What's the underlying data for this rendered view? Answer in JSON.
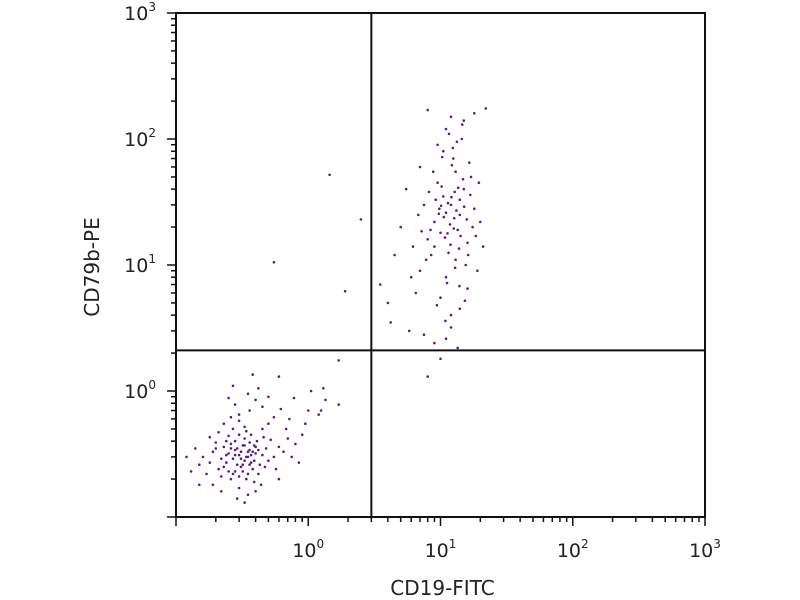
{
  "chart_data": {
    "type": "scatter",
    "xlabel": "CD19-FITC",
    "ylabel": "CD79b-PE",
    "xscale": "log",
    "yscale": "log",
    "xlim": [
      0.1,
      1000
    ],
    "ylim": [
      0.1,
      1000
    ],
    "x_ticks": [
      {
        "value": 1,
        "base": "10",
        "exp": "0"
      },
      {
        "value": 10,
        "base": "10",
        "exp": "1"
      },
      {
        "value": 100,
        "base": "10",
        "exp": "2"
      },
      {
        "value": 1000,
        "base": "10",
        "exp": "3"
      }
    ],
    "y_ticks": [
      {
        "value": 1,
        "base": "10",
        "exp": "0"
      },
      {
        "value": 10,
        "base": "10",
        "exp": "1"
      },
      {
        "value": 100,
        "base": "10",
        "exp": "2"
      },
      {
        "value": 1000,
        "base": "10",
        "exp": "3"
      }
    ],
    "quadrant_gates": {
      "x": 3.0,
      "y": 2.1
    },
    "grid": false,
    "series": [
      {
        "color": "#5b1a8c",
        "points": [
          [
            0.35,
            0.33
          ],
          [
            0.28,
            0.31
          ],
          [
            0.31,
            0.25
          ],
          [
            0.4,
            0.36
          ],
          [
            0.22,
            0.29
          ],
          [
            0.33,
            0.42
          ],
          [
            0.37,
            0.27
          ],
          [
            0.26,
            0.38
          ],
          [
            0.3,
            0.21
          ],
          [
            0.45,
            0.31
          ],
          [
            0.19,
            0.33
          ],
          [
            0.34,
            0.3
          ],
          [
            0.29,
            0.35
          ],
          [
            0.38,
            0.24
          ],
          [
            0.24,
            0.27
          ],
          [
            0.41,
            0.4
          ],
          [
            0.32,
            0.37
          ],
          [
            0.27,
            0.22
          ],
          [
            0.36,
            0.34
          ],
          [
            0.21,
            0.24
          ],
          [
            0.5,
            0.28
          ],
          [
            0.3,
            0.45
          ],
          [
            0.25,
            0.32
          ],
          [
            0.39,
            0.19
          ],
          [
            0.33,
            0.28
          ],
          [
            0.23,
            0.36
          ],
          [
            0.43,
            0.26
          ],
          [
            0.28,
            0.4
          ],
          [
            0.35,
            0.22
          ],
          [
            0.18,
            0.27
          ],
          [
            0.31,
            0.33
          ],
          [
            0.48,
            0.35
          ],
          [
            0.26,
            0.2
          ],
          [
            0.37,
            0.31
          ],
          [
            0.2,
            0.39
          ],
          [
            0.34,
            0.48
          ],
          [
            0.29,
            0.26
          ],
          [
            0.42,
            0.22
          ],
          [
            0.24,
            0.31
          ],
          [
            0.36,
            0.39
          ],
          [
            0.55,
            0.3
          ],
          [
            0.16,
            0.3
          ],
          [
            0.3,
            0.17
          ],
          [
            0.33,
            0.52
          ],
          [
            0.27,
            0.29
          ],
          [
            0.39,
            0.28
          ],
          [
            0.22,
            0.21
          ],
          [
            0.46,
            0.43
          ],
          [
            0.32,
            0.23
          ],
          [
            0.25,
            0.44
          ],
          [
            0.6,
            0.36
          ],
          [
            0.17,
            0.22
          ],
          [
            0.35,
            0.15
          ],
          [
            0.3,
            0.58
          ],
          [
            0.44,
            0.18
          ],
          [
            0.21,
            0.47
          ],
          [
            0.38,
            0.33
          ],
          [
            0.26,
            0.35
          ],
          [
            0.31,
            0.29
          ],
          [
            0.36,
            0.26
          ],
          [
            0.23,
            0.25
          ],
          [
            0.4,
            0.32
          ],
          [
            0.28,
            0.23
          ],
          [
            0.33,
            0.37
          ],
          [
            0.52,
            0.41
          ],
          [
            0.15,
            0.26
          ],
          [
            0.29,
            0.14
          ],
          [
            0.27,
            0.5
          ],
          [
            0.47,
            0.25
          ],
          [
            0.2,
            0.35
          ],
          [
            0.34,
            0.2
          ],
          [
            0.42,
            0.34
          ],
          [
            0.24,
            0.4
          ],
          [
            0.37,
            0.45
          ],
          [
            0.32,
            0.26
          ],
          [
            0.25,
            0.23
          ],
          [
            0.35,
            0.3
          ],
          [
            0.3,
            0.31
          ],
          [
            0.28,
            0.34
          ],
          [
            0.39,
            0.37
          ],
          [
            0.65,
            0.33
          ],
          [
            0.14,
            0.35
          ],
          [
            0.45,
            0.5
          ],
          [
            0.19,
            0.18
          ],
          [
            0.57,
            0.24
          ],
          [
            0.23,
            0.55
          ],
          [
            0.4,
            0.16
          ],
          [
            0.3,
            0.65
          ],
          [
            0.7,
            0.42
          ],
          [
            0.13,
            0.23
          ],
          [
            0.33,
            0.13
          ],
          [
            0.5,
            0.55
          ],
          [
            0.26,
            0.62
          ],
          [
            0.75,
            0.3
          ],
          [
            0.18,
            0.43
          ],
          [
            0.6,
            0.2
          ],
          [
            0.36,
            0.7
          ],
          [
            0.22,
            0.16
          ],
          [
            0.8,
            0.38
          ],
          [
            0.45,
            0.75
          ],
          [
            0.15,
            0.18
          ],
          [
            0.68,
            0.5
          ],
          [
            0.12,
            0.3
          ],
          [
            0.55,
            0.62
          ],
          [
            0.85,
            0.27
          ],
          [
            0.28,
            0.78
          ],
          [
            0.4,
            0.85
          ],
          [
            0.9,
            0.45
          ],
          [
            0.62,
            0.72
          ],
          [
            0.35,
            0.95
          ],
          [
            0.5,
            0.9
          ],
          [
            0.72,
            0.6
          ],
          [
            0.25,
            0.88
          ],
          [
            0.42,
            1.05
          ],
          [
            0.6,
            1.3
          ],
          [
            0.38,
            1.35
          ],
          [
            0.27,
            1.1
          ],
          [
            0.95,
            0.55
          ],
          [
            1.0,
            0.7
          ],
          [
            0.78,
            0.88
          ],
          [
            1.05,
            1.0
          ],
          [
            1.35,
            0.85
          ],
          [
            1.3,
            1.05
          ],
          [
            1.2,
            0.65
          ],
          [
            1.25,
            0.7
          ],
          [
            1.7,
            0.78
          ],
          [
            1.45,
            52.0
          ],
          [
            0.55,
            10.5
          ],
          [
            2.5,
            23.0
          ],
          [
            1.9,
            6.2
          ],
          [
            1.7,
            1.75
          ],
          [
            12.0,
            30.0
          ],
          [
            10.0,
            18.0
          ],
          [
            14.0,
            25.0
          ],
          [
            8.5,
            12.0
          ],
          [
            15.0,
            40.0
          ],
          [
            11.0,
            8.0
          ],
          [
            13.0,
            55.0
          ],
          [
            9.0,
            22.0
          ],
          [
            16.0,
            15.0
          ],
          [
            7.0,
            9.0
          ],
          [
            12.5,
            70.0
          ],
          [
            10.5,
            35.0
          ],
          [
            18.0,
            28.0
          ],
          [
            6.5,
            6.0
          ],
          [
            14.5,
            100.0
          ],
          [
            9.5,
            45.0
          ],
          [
            11.5,
            12.5
          ],
          [
            13.5,
            19.0
          ],
          [
            8.0,
            16.0
          ],
          [
            17.0,
            50.0
          ],
          [
            10.0,
            5.5
          ],
          [
            12.0,
            4.0
          ],
          [
            15.5,
            10.0
          ],
          [
            7.5,
            30.0
          ],
          [
            20.0,
            22.0
          ],
          [
            9.0,
            14.0
          ],
          [
            11.0,
            26.0
          ],
          [
            14.0,
            33.0
          ],
          [
            13.0,
            11.0
          ],
          [
            10.5,
            80.0
          ],
          [
            16.5,
            65.0
          ],
          [
            12.0,
            150.0
          ],
          [
            18.0,
            160.0
          ],
          [
            8.0,
            170.0
          ],
          [
            11.0,
            120.0
          ],
          [
            15.0,
            140.0
          ],
          [
            22.0,
            175.0
          ],
          [
            9.5,
            90.0
          ],
          [
            7.0,
            60.0
          ],
          [
            5.5,
            40.0
          ],
          [
            5.0,
            20.0
          ],
          [
            4.5,
            12.0
          ],
          [
            6.0,
            8.0
          ],
          [
            4.0,
            5.0
          ],
          [
            3.5,
            7.0
          ],
          [
            4.2,
            3.5
          ],
          [
            5.8,
            3.0
          ],
          [
            7.5,
            2.8
          ],
          [
            9.0,
            2.4
          ],
          [
            11.0,
            2.6
          ],
          [
            13.5,
            2.2
          ],
          [
            10.0,
            1.8
          ],
          [
            8.0,
            1.3
          ],
          [
            12.0,
            3.2
          ],
          [
            14.0,
            4.5
          ],
          [
            16.0,
            6.5
          ],
          [
            19.0,
            9.0
          ],
          [
            21.0,
            14.0
          ],
          [
            17.5,
            20.0
          ],
          [
            6.8,
            25.0
          ],
          [
            8.8,
            55.0
          ],
          [
            12.8,
            38.0
          ],
          [
            10.8,
            16.5
          ],
          [
            13.8,
            13.5
          ],
          [
            11.8,
            21.0
          ],
          [
            9.8,
            28.0
          ],
          [
            15.8,
            23.0
          ],
          [
            7.8,
            11.0
          ],
          [
            6.2,
            14.0
          ],
          [
            14.8,
            48.0
          ],
          [
            12.2,
            62.0
          ],
          [
            10.2,
            42.0
          ],
          [
            11.4,
            31.0
          ],
          [
            13.2,
            27.0
          ],
          [
            12.6,
            19.5
          ],
          [
            10.6,
            24.0
          ],
          [
            14.2,
            17.0
          ],
          [
            9.2,
            33.0
          ],
          [
            8.4,
            19.0
          ],
          [
            16.8,
            36.0
          ],
          [
            12.9,
            9.5
          ],
          [
            11.2,
            7.2
          ],
          [
            13.9,
            6.8
          ],
          [
            9.4,
            4.8
          ],
          [
            15.3,
            5.2
          ],
          [
            10.9,
            3.6
          ],
          [
            12.4,
            85.0
          ],
          [
            11.6,
            110.0
          ],
          [
            14.6,
            130.0
          ],
          [
            10.3,
            72.0
          ],
          [
            19.5,
            45.0
          ],
          [
            13.3,
            95.0
          ],
          [
            8.2,
            38.0
          ],
          [
            16.2,
            12.0
          ],
          [
            18.5,
            17.0
          ],
          [
            7.2,
            18.5
          ],
          [
            11.9,
            14.5
          ],
          [
            12.7,
            23.5
          ],
          [
            10.1,
            29.5
          ],
          [
            13.6,
            41.0
          ],
          [
            9.7,
            25.5
          ],
          [
            15.1,
            29.0
          ],
          [
            11.3,
            17.8
          ],
          [
            12.1,
            34.5
          ]
        ]
      }
    ]
  }
}
